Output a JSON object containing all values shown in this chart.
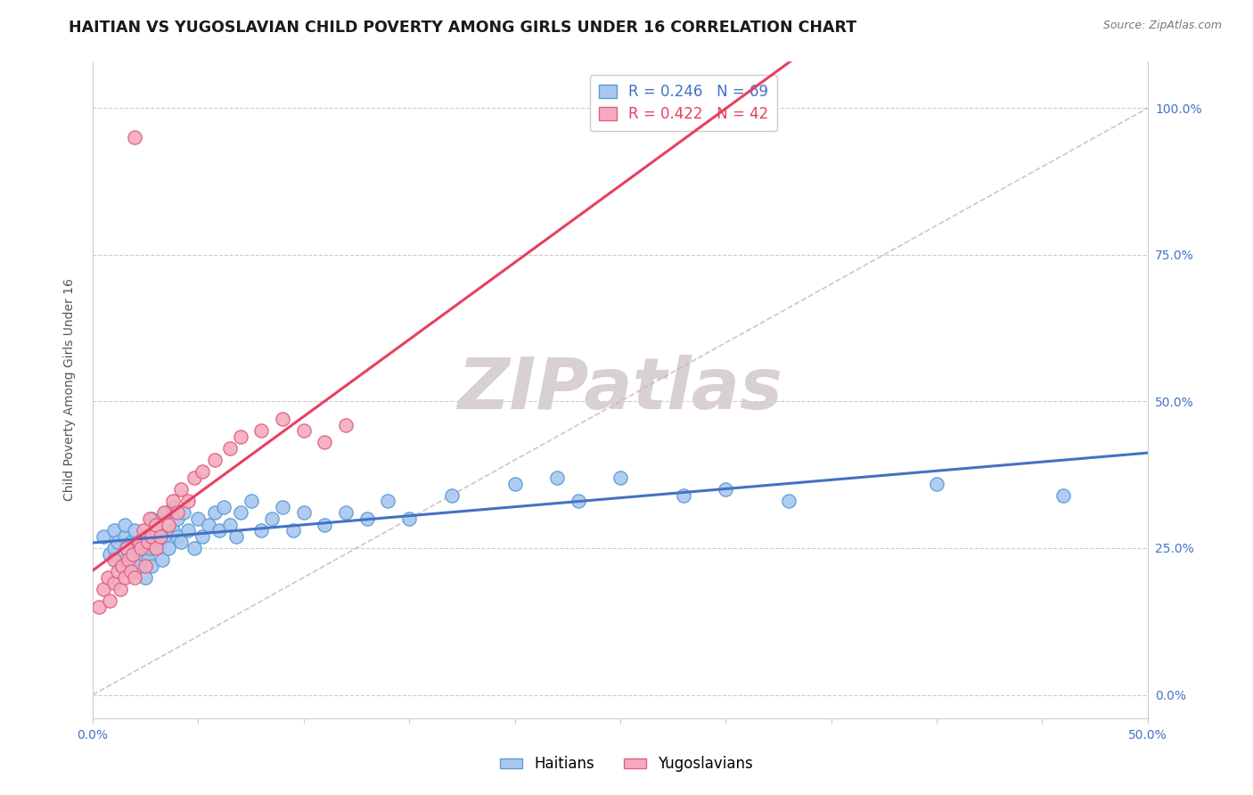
{
  "title": "HAITIAN VS YUGOSLAVIAN CHILD POVERTY AMONG GIRLS UNDER 16 CORRELATION CHART",
  "source_text": "Source: ZipAtlas.com",
  "ylabel": "Child Poverty Among Girls Under 16",
  "xlim": [
    0.0,
    0.5
  ],
  "ylim": [
    -0.04,
    1.08
  ],
  "xtick_positions": [
    0.0,
    0.05,
    0.1,
    0.15,
    0.2,
    0.25,
    0.3,
    0.35,
    0.4,
    0.45,
    0.5
  ],
  "xticklabels": [
    "0.0%",
    "",
    "",
    "",
    "",
    "",
    "",
    "",
    "",
    "",
    "50.0%"
  ],
  "ytick_positions": [
    0.0,
    0.25,
    0.5,
    0.75,
    1.0
  ],
  "yticklabels": [
    "0.0%",
    "25.0%",
    "50.0%",
    "75.0%",
    "100.0%"
  ],
  "haitian_fill": "#A8C8F0",
  "haitian_edge": "#5B9BD5",
  "yugoslav_fill": "#F4ABBE",
  "yugoslav_edge": "#E06080",
  "haitian_line_color": "#4472C4",
  "yugoslav_line_color": "#E84060",
  "diagonal_color": "#C8B4BC",
  "R_haitian": 0.246,
  "N_haitian": 69,
  "R_yugoslav": 0.422,
  "N_yugoslav": 42,
  "haitian_x": [
    0.005,
    0.008,
    0.01,
    0.01,
    0.012,
    0.013,
    0.015,
    0.015,
    0.015,
    0.016,
    0.018,
    0.018,
    0.02,
    0.02,
    0.02,
    0.022,
    0.022,
    0.024,
    0.025,
    0.025,
    0.026,
    0.027,
    0.028,
    0.028,
    0.03,
    0.03,
    0.032,
    0.033,
    0.034,
    0.035,
    0.036,
    0.038,
    0.038,
    0.04,
    0.04,
    0.042,
    0.043,
    0.045,
    0.048,
    0.05,
    0.052,
    0.055,
    0.058,
    0.06,
    0.062,
    0.065,
    0.068,
    0.07,
    0.075,
    0.08,
    0.085,
    0.09,
    0.095,
    0.1,
    0.11,
    0.12,
    0.13,
    0.14,
    0.15,
    0.17,
    0.2,
    0.22,
    0.23,
    0.25,
    0.28,
    0.3,
    0.33,
    0.4,
    0.46
  ],
  "haitian_y": [
    0.27,
    0.24,
    0.25,
    0.28,
    0.26,
    0.22,
    0.23,
    0.27,
    0.29,
    0.25,
    0.23,
    0.26,
    0.21,
    0.24,
    0.28,
    0.22,
    0.26,
    0.24,
    0.2,
    0.27,
    0.23,
    0.25,
    0.22,
    0.3,
    0.25,
    0.29,
    0.26,
    0.23,
    0.27,
    0.31,
    0.25,
    0.28,
    0.32,
    0.27,
    0.3,
    0.26,
    0.31,
    0.28,
    0.25,
    0.3,
    0.27,
    0.29,
    0.31,
    0.28,
    0.32,
    0.29,
    0.27,
    0.31,
    0.33,
    0.28,
    0.3,
    0.32,
    0.28,
    0.31,
    0.29,
    0.31,
    0.3,
    0.33,
    0.3,
    0.34,
    0.36,
    0.37,
    0.33,
    0.37,
    0.34,
    0.35,
    0.33,
    0.36,
    0.34
  ],
  "yugoslav_x": [
    0.003,
    0.005,
    0.007,
    0.008,
    0.01,
    0.01,
    0.012,
    0.013,
    0.014,
    0.015,
    0.016,
    0.017,
    0.018,
    0.019,
    0.02,
    0.02,
    0.022,
    0.023,
    0.024,
    0.025,
    0.026,
    0.027,
    0.028,
    0.03,
    0.03,
    0.032,
    0.034,
    0.036,
    0.038,
    0.04,
    0.042,
    0.045,
    0.048,
    0.052,
    0.058,
    0.065,
    0.07,
    0.08,
    0.09,
    0.1,
    0.11,
    0.12
  ],
  "yugoslav_y": [
    0.15,
    0.18,
    0.2,
    0.16,
    0.19,
    0.23,
    0.21,
    0.18,
    0.22,
    0.2,
    0.25,
    0.23,
    0.21,
    0.24,
    0.2,
    0.95,
    0.26,
    0.25,
    0.28,
    0.22,
    0.26,
    0.3,
    0.27,
    0.25,
    0.29,
    0.27,
    0.31,
    0.29,
    0.33,
    0.31,
    0.35,
    0.33,
    0.37,
    0.38,
    0.4,
    0.42,
    0.44,
    0.45,
    0.47,
    0.45,
    0.43,
    0.46
  ],
  "watermark_text": "ZIPatlas",
  "watermark_color": "#D8D0D4",
  "background_color": "#FFFFFF",
  "title_fontsize": 12.5,
  "axis_label_fontsize": 10,
  "tick_fontsize": 10,
  "legend_fontsize": 12
}
